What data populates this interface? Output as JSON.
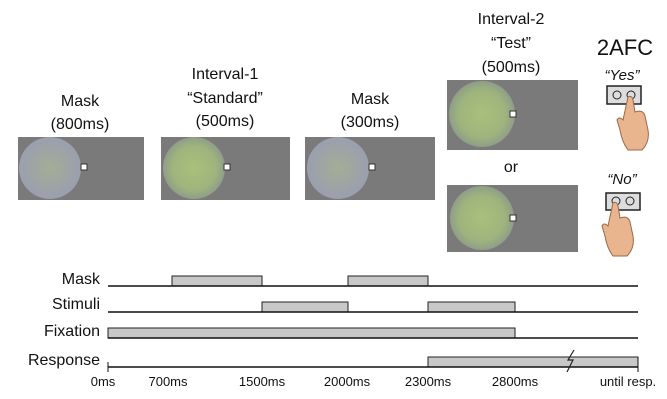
{
  "panels": [
    {
      "lines": [
        "Mask",
        "(800ms)"
      ]
    },
    {
      "lines": [
        "Interval-1",
        "“Standard”",
        "(500ms)"
      ]
    },
    {
      "lines": [
        "Mask",
        "(300ms)"
      ]
    },
    {
      "lines": [
        "Interval-2",
        "“Test”",
        "(500ms)"
      ]
    }
  ],
  "or_label": "or",
  "response": {
    "title": "2AFC",
    "yes": "“Yes”",
    "no": "“No”"
  },
  "timeline": {
    "rows": [
      "Mask",
      "Stimuli",
      "Fixation",
      "Response"
    ],
    "ticks": [
      "0ms",
      "700ms",
      "1500ms",
      "2000ms",
      "2300ms",
      "2800ms",
      "until resp."
    ]
  }
}
